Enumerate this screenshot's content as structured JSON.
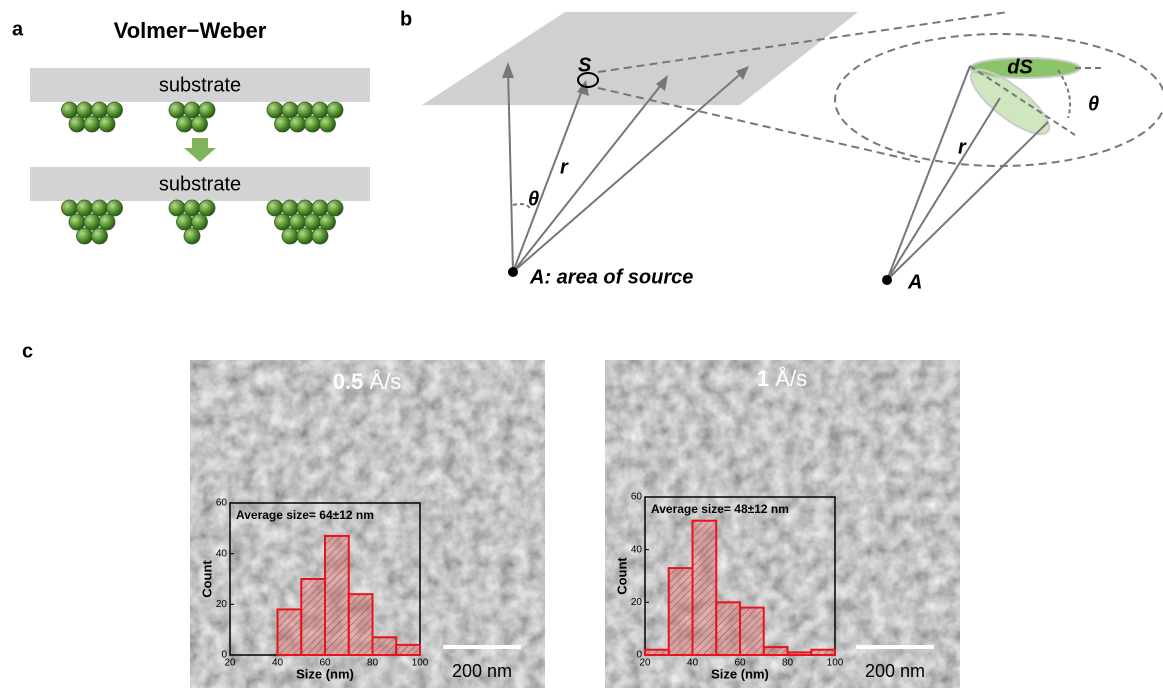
{
  "panel_a": {
    "label": "a",
    "title": "Volmer−Weber",
    "substrate_top": "substrate",
    "substrate_bottom": "substrate"
  },
  "panel_b": {
    "label": "b",
    "source_patch": "S",
    "distance": "r",
    "angle": "θ",
    "source_point": "A: area of source",
    "element": "dS",
    "angle_zoom": "θ",
    "distance_zoom": "r",
    "source_zoom": "A"
  },
  "panel_c": {
    "label": "c",
    "images": [
      {
        "rate": "0.5",
        "unit": "Å/s",
        "scale_bar": "200 nm"
      },
      {
        "rate": "1",
        "unit": "Å/s",
        "scale_bar": "200 nm"
      }
    ]
  },
  "chart_data": [
    {
      "type": "histogram",
      "annotation": "Average size= 64±12 nm",
      "x_label": "Size (nm)",
      "y_label": "Count",
      "bins": [
        40,
        50,
        60,
        70,
        80,
        90,
        100
      ],
      "values": [
        18,
        30,
        47,
        24,
        7,
        4
      ],
      "color": "#e8141b",
      "xlim": [
        20,
        100
      ],
      "ylim": [
        0,
        60
      ],
      "xticks": [
        20,
        40,
        60,
        80,
        100
      ],
      "yticks": [
        0,
        20,
        40,
        60
      ]
    },
    {
      "type": "histogram",
      "annotation": "Average size= 48±12 nm",
      "x_label": "Size (nm)",
      "y_label": "Count",
      "bins": [
        20,
        30,
        40,
        50,
        60,
        70,
        80,
        90,
        100
      ],
      "values": [
        2,
        33,
        51,
        20,
        18,
        3,
        1,
        2
      ],
      "color": "#e8141b",
      "xlim": [
        20,
        100
      ],
      "ylim": [
        0,
        60
      ],
      "xticks": [
        20,
        40,
        60,
        80,
        100
      ],
      "yticks": [
        0,
        20,
        40,
        60
      ]
    }
  ]
}
